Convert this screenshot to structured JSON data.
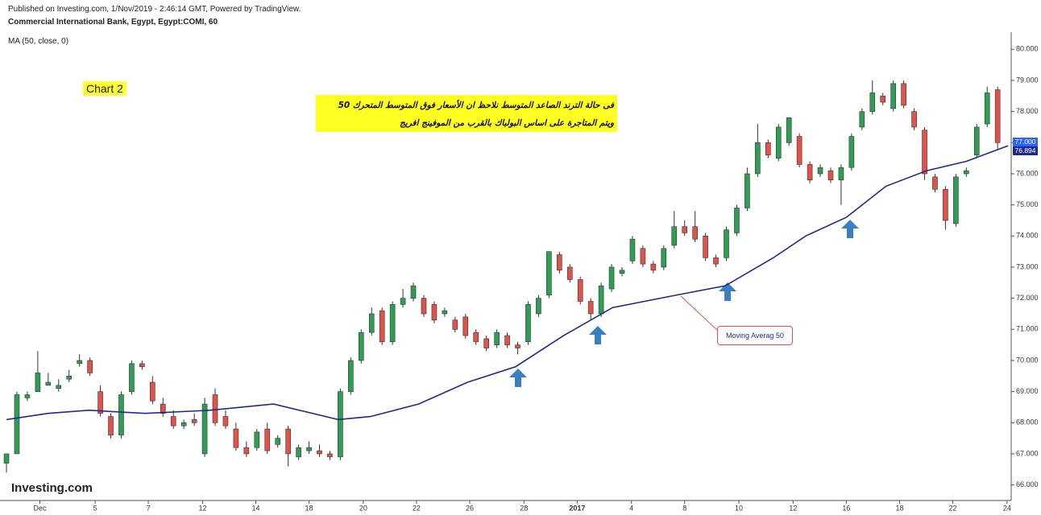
{
  "header": {
    "line_1": "Published on Investing.com, 1/Nov/2019 - 2:46:14 GMT, Powered by TradingView.",
    "line_2": "Commercial International Bank, Egypt, Egypt:COMI, 60",
    "indicator": "MA (50, close, 0)",
    "logo": "Investing.com"
  },
  "annotations": {
    "chart_label": "Chart 2",
    "arabic_line_1": "فى حالة الترند الصاعد المتوسط  نلاحظ ان الأسعار فوق المتوسط المتحرك  50",
    "arabic_line_2": "ويتم المتاجرة على اساس البولباك بالقرب من الموفينج افريج",
    "ma_callout": "Moving Averag 50"
  },
  "chart_data": {
    "type": "candlestick",
    "series": [
      {
        "name": "COMI",
        "up_color": "#2f9e55",
        "down_color": "#e0524a",
        "open": [
          66.7,
          67.0,
          68.8,
          69.0,
          69.2,
          69.1,
          69.4,
          69.9,
          70.0,
          69.0,
          68.2,
          67.6,
          69.0,
          69.9,
          69.3,
          68.6,
          68.2,
          67.9,
          68.1,
          67.0,
          68.9,
          68.2,
          67.8,
          67.2,
          67.2,
          67.8,
          67.3,
          67.8,
          66.9,
          67.1,
          67.1,
          67.0,
          66.9,
          69.0,
          70.0,
          70.9,
          71.6,
          70.6,
          71.8,
          72.0,
          72.0,
          71.8,
          71.5,
          71.3,
          71.4,
          70.9,
          70.7,
          70.5,
          70.8,
          70.5,
          70.6,
          71.5,
          72.1,
          73.4,
          73.0,
          72.6,
          71.9,
          71.5,
          72.3,
          72.8,
          73.2,
          73.6,
          73.1,
          73.0,
          73.7,
          74.3,
          74.3,
          74.0,
          73.3,
          73.3,
          74.1,
          74.9,
          76.0,
          77.0,
          76.5,
          77.0,
          77.2,
          76.3,
          76.0,
          76.1,
          75.8,
          76.2,
          77.5,
          78.0,
          78.5,
          78.1,
          78.9,
          78.0,
          77.4,
          75.9,
          75.5,
          74.4,
          76.0,
          76.6,
          77.6,
          78.7
        ],
        "high": [
          67.0,
          69.0,
          69.0,
          70.3,
          69.6,
          69.4,
          69.7,
          70.2,
          70.1,
          69.2,
          68.3,
          69.0,
          70.0,
          70.0,
          69.5,
          68.8,
          68.4,
          68.1,
          68.3,
          68.8,
          69.1,
          68.4,
          68.0,
          67.4,
          67.8,
          68.0,
          67.6,
          67.9,
          67.3,
          67.4,
          67.3,
          67.1,
          69.1,
          70.1,
          71.0,
          71.7,
          71.7,
          71.9,
          72.3,
          72.5,
          72.1,
          71.9,
          71.7,
          71.4,
          71.5,
          71.0,
          70.8,
          71.0,
          70.9,
          70.6,
          71.9,
          72.1,
          73.5,
          73.5,
          73.1,
          72.7,
          72.0,
          72.5,
          73.1,
          73.0,
          74.0,
          73.7,
          73.2,
          73.7,
          74.8,
          74.5,
          74.8,
          74.1,
          73.4,
          74.3,
          75.0,
          76.2,
          77.6,
          77.1,
          77.6,
          77.8,
          77.3,
          76.4,
          76.3,
          76.2,
          76.3,
          77.3,
          78.1,
          79.0,
          78.6,
          79.0,
          79.0,
          78.1,
          77.5,
          76.0,
          75.6,
          76.0,
          76.2,
          77.6,
          78.8,
          78.8
        ],
        "low": [
          66.4,
          67.0,
          68.7,
          69.0,
          69.2,
          69.0,
          69.3,
          69.8,
          69.5,
          68.2,
          67.5,
          67.5,
          68.9,
          69.7,
          68.6,
          68.2,
          67.8,
          67.8,
          67.9,
          66.9,
          67.9,
          67.8,
          67.1,
          66.9,
          67.1,
          67.0,
          67.2,
          66.6,
          66.8,
          67.0,
          66.9,
          66.8,
          66.8,
          68.9,
          69.9,
          70.8,
          70.5,
          70.5,
          71.7,
          71.9,
          71.4,
          71.2,
          71.4,
          70.9,
          70.7,
          70.5,
          70.3,
          70.4,
          70.4,
          70.2,
          70.5,
          71.4,
          72.0,
          72.8,
          72.5,
          71.8,
          71.3,
          71.4,
          72.2,
          72.7,
          73.1,
          73.0,
          72.8,
          72.9,
          73.6,
          74.0,
          73.8,
          73.2,
          73.0,
          73.2,
          74.0,
          74.8,
          75.9,
          76.5,
          76.4,
          76.9,
          76.2,
          75.7,
          75.9,
          75.7,
          75.0,
          76.1,
          77.4,
          77.9,
          78.2,
          78.0,
          78.1,
          77.4,
          75.8,
          75.4,
          74.2,
          74.3,
          75.9,
          76.5,
          77.5,
          76.8
        ],
        "close": [
          67.0,
          68.9,
          68.9,
          69.6,
          69.3,
          69.2,
          69.5,
          70.0,
          69.6,
          68.3,
          67.6,
          68.9,
          69.9,
          69.8,
          68.7,
          68.3,
          67.9,
          68.0,
          68.0,
          68.6,
          68.0,
          67.9,
          67.2,
          67.0,
          67.7,
          67.1,
          67.5,
          67.0,
          67.2,
          67.2,
          67.0,
          66.9,
          69.0,
          70.0,
          70.9,
          71.5,
          70.6,
          71.8,
          72.0,
          72.4,
          71.5,
          71.3,
          71.6,
          71.0,
          70.8,
          70.6,
          70.4,
          70.9,
          70.5,
          70.4,
          71.8,
          72.0,
          73.5,
          72.9,
          72.6,
          71.9,
          71.5,
          72.4,
          73.0,
          72.9,
          73.9,
          73.1,
          72.9,
          73.6,
          74.3,
          74.1,
          73.9,
          73.3,
          73.1,
          74.2,
          74.9,
          76.0,
          77.0,
          76.6,
          77.5,
          77.8,
          76.3,
          75.8,
          76.2,
          75.8,
          76.2,
          77.2,
          78.0,
          78.6,
          78.3,
          78.9,
          78.2,
          77.5,
          76.0,
          75.5,
          74.5,
          75.9,
          76.1,
          77.5,
          78.6,
          77.0
        ]
      },
      {
        "name": "MA (50)",
        "color": "#1f2a8c",
        "x": [
          0,
          4,
          7.9,
          13.3,
          19.5,
          25.6,
          31.8,
          34.9,
          39.5,
          44.2,
          48.8,
          53.4,
          58.1,
          64.2,
          68.9,
          73.5,
          76.6,
          80.5,
          84.3,
          88.2,
          92,
          96
        ],
        "values": [
          68.1,
          68.3,
          68.4,
          68.3,
          68.4,
          68.6,
          68.1,
          68.2,
          68.6,
          69.3,
          69.8,
          70.8,
          71.7,
          72.1,
          72.4,
          73.3,
          74.0,
          74.6,
          75.6,
          76.1,
          76.4,
          76.9
        ]
      }
    ],
    "last_price": {
      "value": 77,
      "label": "77.000"
    },
    "last_ma": {
      "value": 76.894,
      "label": "76.894"
    },
    "xlim": [
      -0.62,
      96.3
    ],
    "xticks": [
      {
        "value": 3.2,
        "label": "Dec"
      },
      {
        "value": 8.5,
        "label": "5"
      },
      {
        "value": 13.6,
        "label": "7"
      },
      {
        "value": 18.8,
        "label": "12"
      },
      {
        "value": 23.9,
        "label": "14"
      },
      {
        "value": 29.0,
        "label": "18"
      },
      {
        "value": 34.2,
        "label": "20"
      },
      {
        "value": 39.3,
        "label": "22"
      },
      {
        "value": 44.4,
        "label": "26"
      },
      {
        "value": 49.6,
        "label": "28"
      },
      {
        "value": 54.7,
        "label": "2017"
      },
      {
        "value": 59.9,
        "label": "4"
      },
      {
        "value": 65.0,
        "label": "8"
      },
      {
        "value": 70.2,
        "label": "10"
      },
      {
        "value": 75.4,
        "label": "12"
      },
      {
        "value": 80.5,
        "label": "16"
      },
      {
        "value": 85.6,
        "label": "18"
      },
      {
        "value": 90.7,
        "label": "22"
      },
      {
        "value": 95.9,
        "label": "24"
      }
    ],
    "ylim": [
      65.5,
      80.55
    ],
    "yticks": [
      {
        "value": 66,
        "label": "66.000"
      },
      {
        "value": 67,
        "label": "67.000"
      },
      {
        "value": 68,
        "label": "68.000"
      },
      {
        "value": 69,
        "label": "69.000"
      },
      {
        "value": 70,
        "label": "70.000"
      },
      {
        "value": 71,
        "label": "71.000"
      },
      {
        "value": 72,
        "label": "72.000"
      },
      {
        "value": 73,
        "label": "73.000"
      },
      {
        "value": 74,
        "label": "74.000"
      },
      {
        "value": 75,
        "label": "75.000"
      },
      {
        "value": 76,
        "label": "76.000"
      },
      {
        "value": 77,
        "label": "77.000"
      },
      {
        "value": 78,
        "label": "78.000"
      },
      {
        "value": 79,
        "label": "79.000"
      },
      {
        "value": 80,
        "label": "80.000"
      }
    ],
    "grid": false
  }
}
